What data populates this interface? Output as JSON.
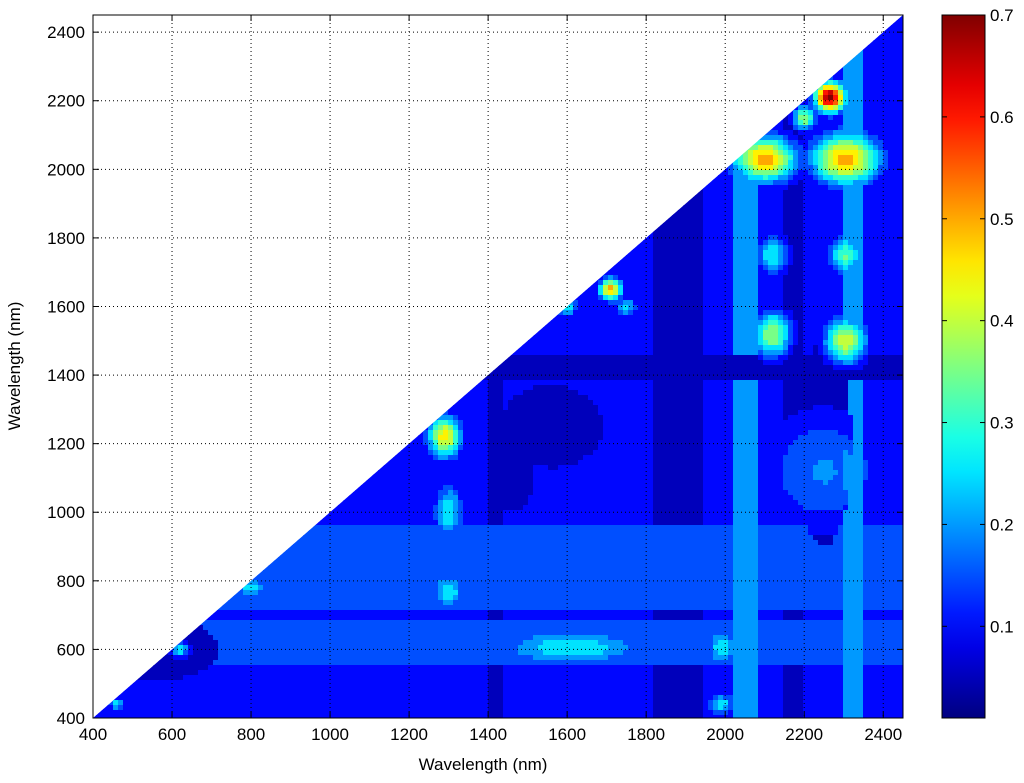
{
  "chart_data": {
    "type": "heatmap",
    "title": "",
    "xlabel": "Wavelength (nm)",
    "ylabel": "Wavelength (nm)",
    "xlim": [
      400,
      2450
    ],
    "ylim": [
      400,
      2450
    ],
    "xticks": [
      400,
      600,
      800,
      1000,
      1200,
      1400,
      1600,
      1800,
      2000,
      2200,
      2400
    ],
    "yticks": [
      400,
      600,
      800,
      1000,
      1200,
      1400,
      1600,
      1800,
      2000,
      2200,
      2400
    ],
    "grid": true,
    "region": "lower triangle (y <= x), upper-left region blank",
    "colormap": "jet",
    "colorbar": {
      "min": 0.01,
      "max": 0.7,
      "ticks": [
        0.1,
        0.2,
        0.3,
        0.4,
        0.5,
        0.6,
        0.7
      ],
      "position": "right"
    },
    "background_level": 0.1,
    "bands": [
      {
        "axis": "x",
        "from": 1820,
        "to": 1950,
        "value": 0.03
      },
      {
        "axis": "x",
        "from": 1400,
        "to": 1440,
        "value": 0.07
      },
      {
        "axis": "x",
        "from": 2020,
        "to": 2080,
        "value": 0.2
      },
      {
        "axis": "x",
        "from": 2150,
        "to": 2200,
        "value": 0.05
      },
      {
        "axis": "x",
        "from": 2300,
        "to": 2350,
        "value": 0.2
      },
      {
        "axis": "y",
        "from": 1380,
        "to": 1460,
        "value": 0.05
      },
      {
        "axis": "y",
        "from": 560,
        "to": 690,
        "value": 0.17
      },
      {
        "axis": "y",
        "from": 720,
        "to": 960,
        "value": 0.16
      }
    ],
    "peaks": [
      {
        "x": 2265,
        "y": 2210,
        "value": 0.7,
        "rx": 40,
        "ry": 45
      },
      {
        "x": 2305,
        "y": 2030,
        "value": 0.5,
        "rx": 90,
        "ry": 80
      },
      {
        "x": 2100,
        "y": 2030,
        "value": 0.5,
        "rx": 85,
        "ry": 70
      },
      {
        "x": 2200,
        "y": 2150,
        "value": 0.37,
        "rx": 30,
        "ry": 40
      },
      {
        "x": 2305,
        "y": 1500,
        "value": 0.42,
        "rx": 55,
        "ry": 70
      },
      {
        "x": 2120,
        "y": 1520,
        "value": 0.38,
        "rx": 50,
        "ry": 70
      },
      {
        "x": 2305,
        "y": 1750,
        "value": 0.33,
        "rx": 45,
        "ry": 60
      },
      {
        "x": 2120,
        "y": 1750,
        "value": 0.27,
        "rx": 45,
        "ry": 60
      },
      {
        "x": 1710,
        "y": 1650,
        "value": 0.5,
        "rx": 30,
        "ry": 35
      },
      {
        "x": 1290,
        "y": 1220,
        "value": 0.45,
        "rx": 45,
        "ry": 65
      },
      {
        "x": 1300,
        "y": 1000,
        "value": 0.27,
        "rx": 40,
        "ry": 90
      },
      {
        "x": 1300,
        "y": 770,
        "value": 0.27,
        "rx": 45,
        "ry": 55
      },
      {
        "x": 1610,
        "y": 605,
        "value": 0.27,
        "rx": 210,
        "ry": 60
      },
      {
        "x": 1990,
        "y": 605,
        "value": 0.27,
        "rx": 40,
        "ry": 60
      },
      {
        "x": 1990,
        "y": 440,
        "value": 0.25,
        "rx": 40,
        "ry": 35
      },
      {
        "x": 2250,
        "y": 1120,
        "value": 0.18,
        "rx": 180,
        "ry": 200
      },
      {
        "x": 800,
        "y": 780,
        "value": 0.27,
        "rx": 40,
        "ry": 30
      },
      {
        "x": 1600,
        "y": 1600,
        "value": 0.25,
        "rx": 30,
        "ry": 35
      },
      {
        "x": 1750,
        "y": 1600,
        "value": 0.25,
        "rx": 30,
        "ry": 30
      },
      {
        "x": 620,
        "y": 600,
        "value": 0.27,
        "rx": 25,
        "ry": 25
      },
      {
        "x": 460,
        "y": 440,
        "value": 0.25,
        "rx": 20,
        "ry": 20
      }
    ],
    "valleys": [
      {
        "x": 560,
        "y": 600,
        "value": 0.03,
        "rx": 160,
        "ry": 90
      },
      {
        "x": 1560,
        "y": 1250,
        "value": 0.03,
        "rx": 130,
        "ry": 120
      },
      {
        "x": 1460,
        "y": 1150,
        "value": 0.03,
        "rx": 60,
        "ry": 150
      },
      {
        "x": 2250,
        "y": 1200,
        "value": 0.03,
        "rx": 70,
        "ry": 300
      }
    ]
  },
  "colorbar_labels": [
    "0.1",
    "0.2",
    "0.3",
    "0.4",
    "0.5",
    "0.6",
    "0.7"
  ],
  "x_tick_labels": [
    "400",
    "600",
    "800",
    "1000",
    "1200",
    "1400",
    "1600",
    "1800",
    "2000",
    "2200",
    "2400"
  ],
  "y_tick_labels": [
    "400",
    "600",
    "800",
    "1000",
    "1200",
    "1400",
    "1600",
    "1800",
    "2000",
    "2200",
    "2400"
  ]
}
